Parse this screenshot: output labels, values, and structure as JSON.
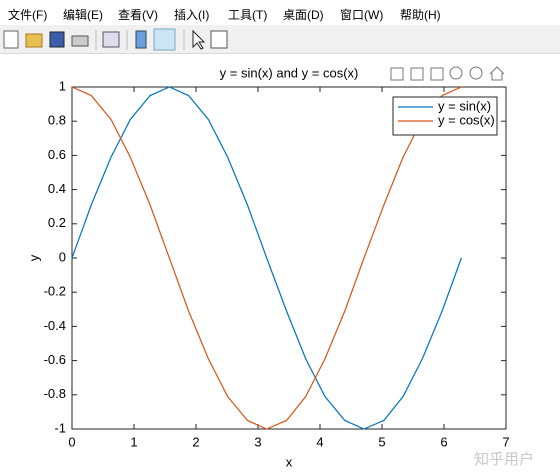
{
  "menu": [
    "文件(F)",
    "编辑(E)",
    "查看(V)",
    "插入(I)",
    "工具(T)",
    "桌面(D)",
    "窗口(W)",
    "帮助(H)"
  ],
  "watermark": "知乎用户",
  "chart_data": {
    "type": "line",
    "title": "y = sin(x) and y = cos(x)",
    "x_label": "x",
    "y_label": "y",
    "x": [
      0,
      0.31,
      0.63,
      0.94,
      1.26,
      1.57,
      1.88,
      2.2,
      2.51,
      2.83,
      3.14,
      3.46,
      3.77,
      4.08,
      4.4,
      4.71,
      5.03,
      5.34,
      5.65,
      5.97,
      6.28
    ],
    "series": [
      {
        "name": "y = sin(x)",
        "color": "#0072bd",
        "values": [
          0,
          0.31,
          0.59,
          0.81,
          0.95,
          1,
          0.95,
          0.81,
          0.59,
          0.31,
          0,
          -0.31,
          -0.59,
          -0.81,
          -0.95,
          -1,
          -0.95,
          -0.81,
          -0.59,
          -0.31,
          0
        ]
      },
      {
        "name": "y = cos(x)",
        "color": "#d95319",
        "values": [
          1,
          0.95,
          0.81,
          0.59,
          0.31,
          0,
          -0.31,
          -0.59,
          -0.81,
          -0.95,
          -1,
          -0.95,
          -0.81,
          -0.59,
          -0.31,
          0,
          0.31,
          0.59,
          0.81,
          0.95,
          1
        ]
      }
    ],
    "xlim": [
      0,
      7
    ],
    "xticks": [
      0,
      1,
      2,
      3,
      4,
      5,
      6,
      7
    ],
    "ylim": [
      -1,
      1
    ],
    "yticks": [
      -1,
      -0.8,
      -0.6,
      -0.4,
      -0.2,
      0,
      0.2,
      0.4,
      0.6,
      0.8,
      1
    ],
    "grid": false,
    "legend": "northeast"
  }
}
